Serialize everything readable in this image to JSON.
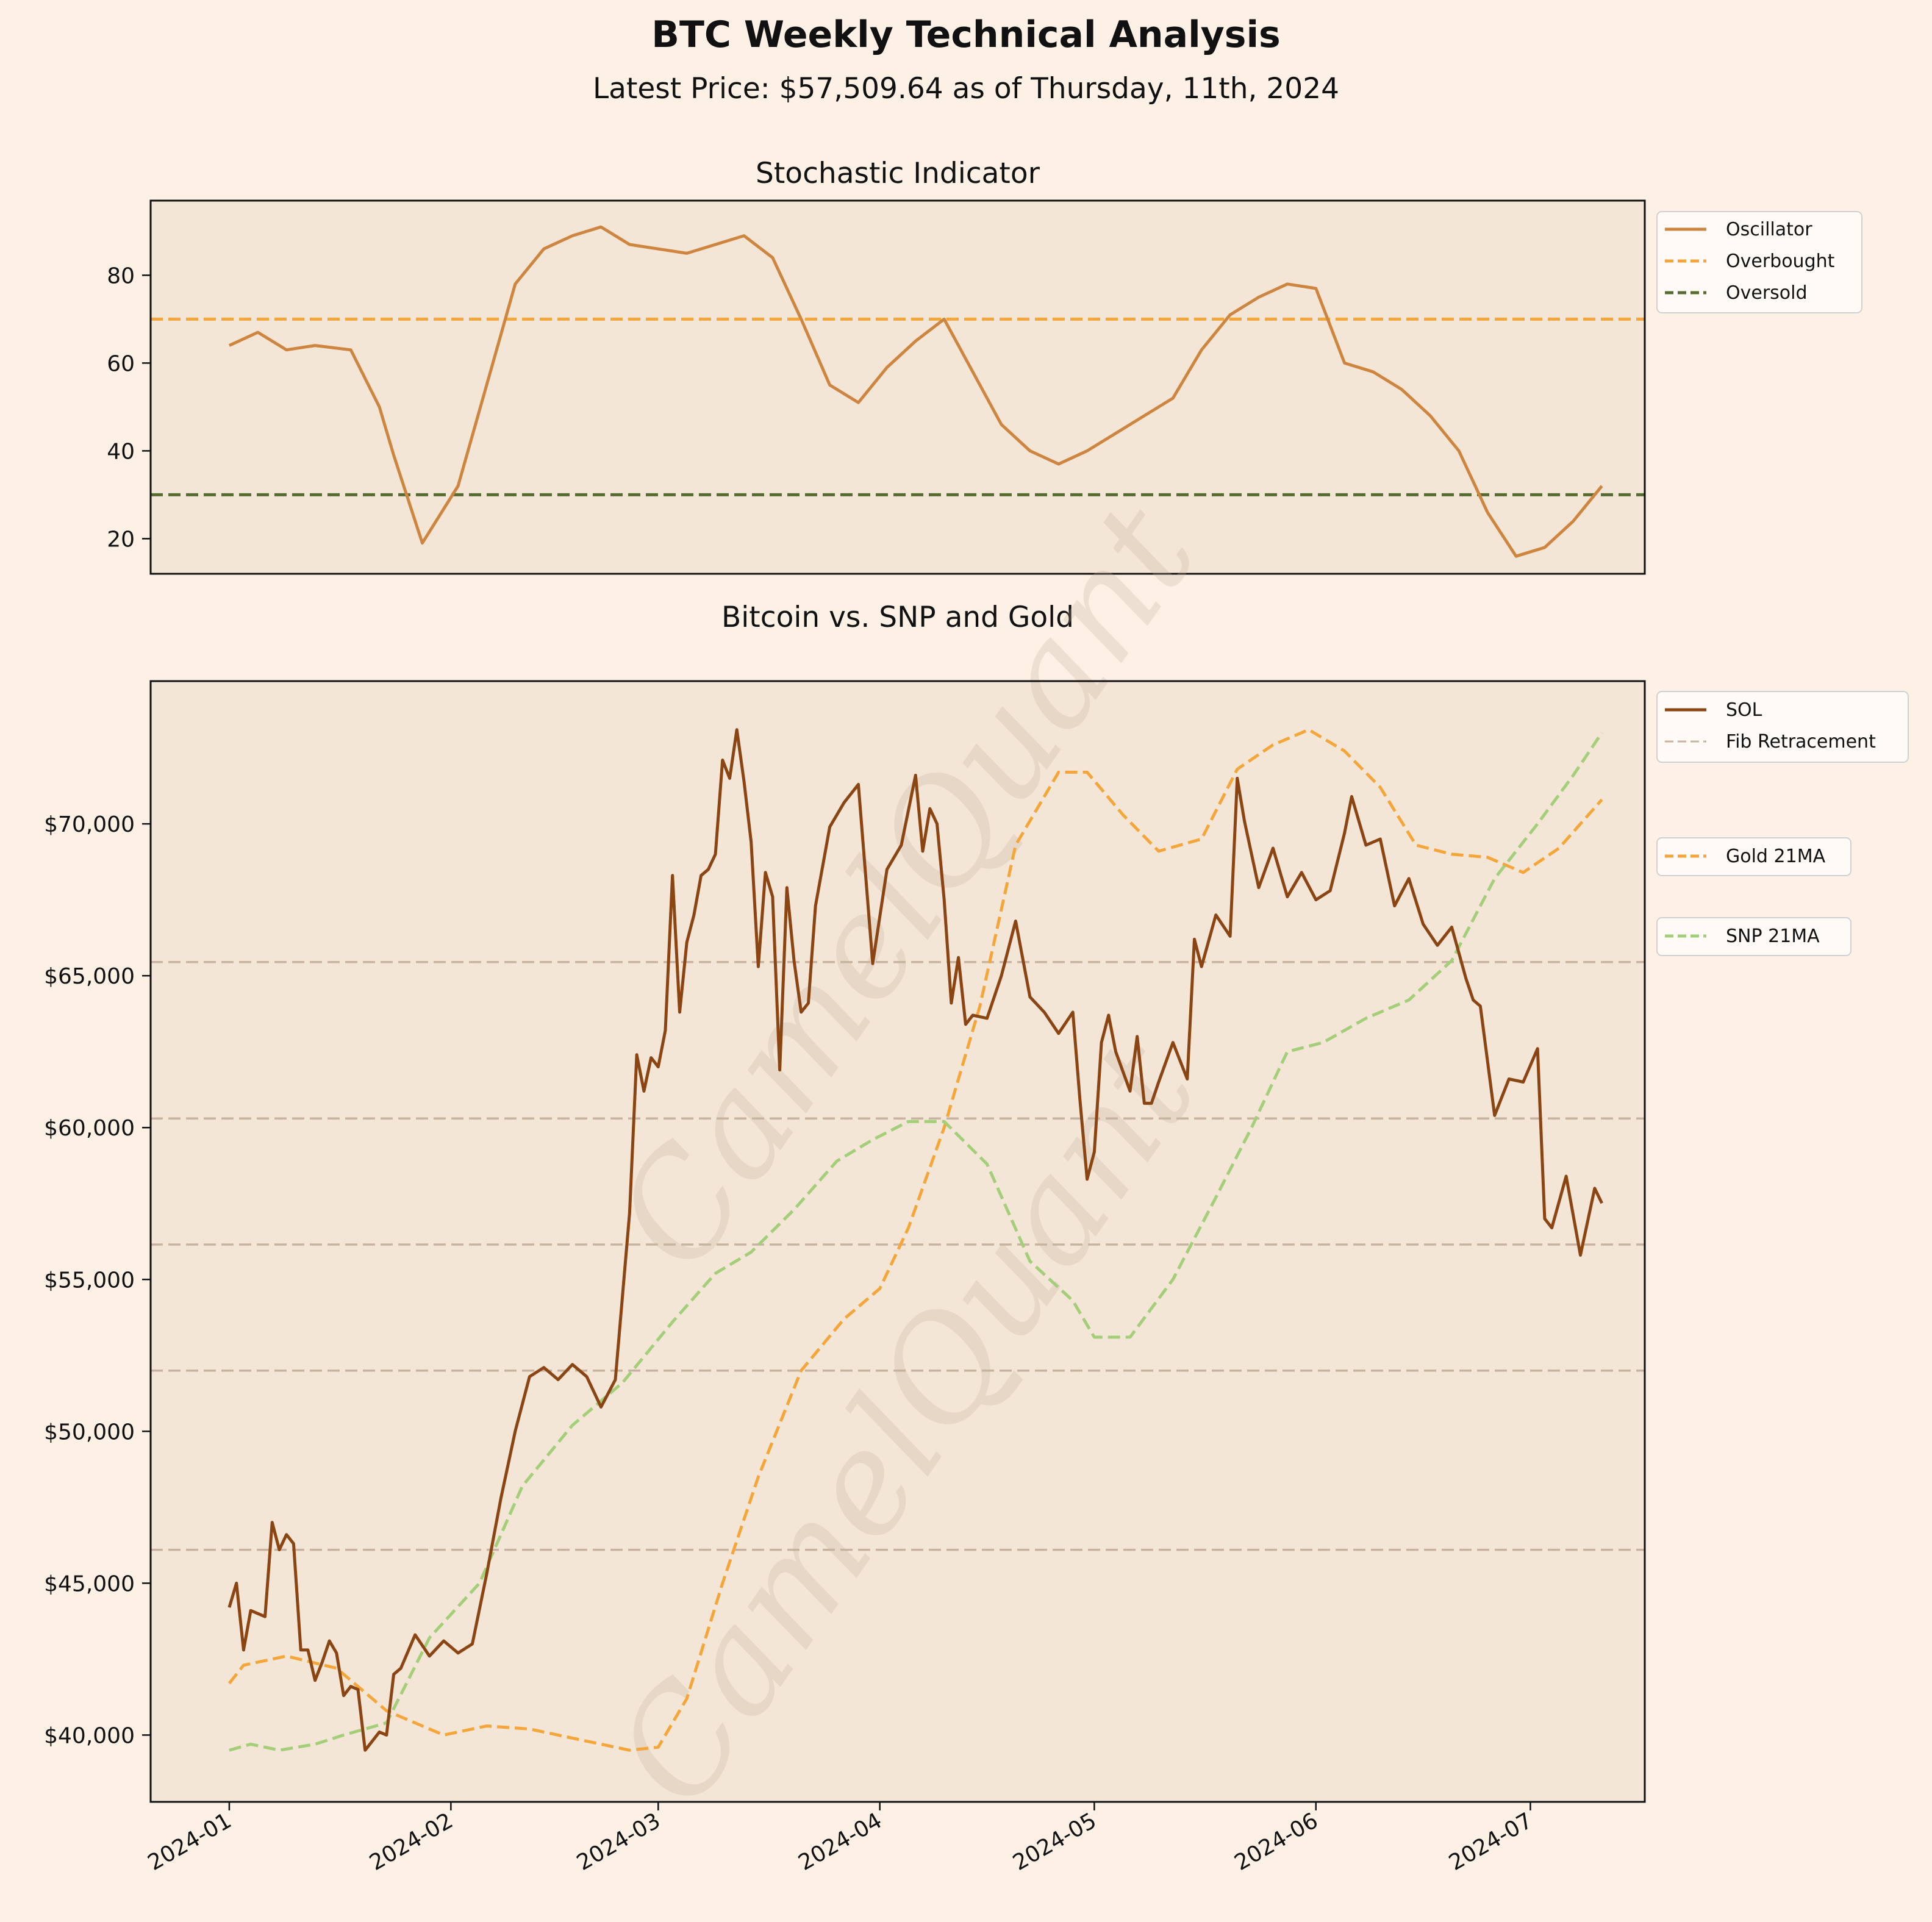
{
  "header": {
    "title": "BTC Weekly Technical Analysis",
    "subtitle": "Latest Price: $57,509.64 as of Thursday, 11th, 2024"
  },
  "watermark": "CamelQuant",
  "colors": {
    "background": "#fdf1e6",
    "plot_background": "#f4e6d6",
    "oscillator": "#cd853f",
    "overbought": "#f4a63a",
    "oversold": "#556b2f",
    "price": "#8b4513",
    "fib": "#c8b2a0",
    "gold_ma": "#f4a63a",
    "snp_ma": "#a3cf79"
  },
  "chart_data": [
    {
      "type": "line",
      "title": "Stochastic Indicator",
      "ylim": [
        12,
        97
      ],
      "yticks": [
        20,
        40,
        60,
        80
      ],
      "grid": false,
      "legend_position": "outside-right-top",
      "hlines": [
        {
          "name": "Overbought",
          "value": 70,
          "style": "dashed"
        },
        {
          "name": "Oversold",
          "value": 30,
          "style": "dashed"
        }
      ],
      "series": [
        {
          "name": "Oscillator",
          "x": [
            "2024-01-01",
            "2024-01-05",
            "2024-01-09",
            "2024-01-13",
            "2024-01-18",
            "2024-01-22",
            "2024-01-24",
            "2024-01-28",
            "2024-02-02",
            "2024-02-06",
            "2024-02-10",
            "2024-02-14",
            "2024-02-18",
            "2024-02-22",
            "2024-02-26",
            "2024-03-01",
            "2024-03-05",
            "2024-03-09",
            "2024-03-13",
            "2024-03-17",
            "2024-03-21",
            "2024-03-25",
            "2024-03-29",
            "2024-04-02",
            "2024-04-06",
            "2024-04-10",
            "2024-04-14",
            "2024-04-18",
            "2024-04-22",
            "2024-04-26",
            "2024-04-30",
            "2024-05-04",
            "2024-05-08",
            "2024-05-12",
            "2024-05-16",
            "2024-05-20",
            "2024-05-24",
            "2024-05-28",
            "2024-06-01",
            "2024-06-05",
            "2024-06-09",
            "2024-06-13",
            "2024-06-17",
            "2024-06-21",
            "2024-06-25",
            "2024-06-29",
            "2024-07-03",
            "2024-07-07",
            "2024-07-11"
          ],
          "values": [
            64,
            67,
            63,
            64,
            63,
            50,
            39,
            19,
            32,
            55,
            78,
            86,
            89,
            91,
            87,
            86,
            85,
            87,
            89,
            84,
            70,
            55,
            51,
            59,
            65,
            70,
            58,
            46,
            40,
            37,
            40,
            44,
            48,
            52,
            63,
            71,
            75,
            78,
            77,
            60,
            58,
            54,
            48,
            40,
            26,
            16,
            18,
            24,
            32
          ]
        }
      ]
    },
    {
      "type": "line",
      "title": "Bitcoin vs. SNP and Gold",
      "ylim": [
        37800,
        74700
      ],
      "yticks": [
        40000,
        45000,
        50000,
        55000,
        60000,
        65000,
        70000
      ],
      "ytick_labels": [
        "$40,000",
        "$45,000",
        "$50,000",
        "$55,000",
        "$60,000",
        "$65,000",
        "$70,000"
      ],
      "xticks": [
        "2024-01",
        "2024-02",
        "2024-03",
        "2024-04",
        "2024-05",
        "2024-06",
        "2024-07"
      ],
      "grid": false,
      "legend_position": "outside-right",
      "hlines": [
        {
          "name": "Fib Retracement",
          "values": [
            46100,
            52000,
            56150,
            60300,
            65450
          ],
          "style": "dashed"
        }
      ],
      "series": [
        {
          "name": "SOL",
          "x": [
            "2024-01-01",
            "2024-01-02",
            "2024-01-03",
            "2024-01-04",
            "2024-01-05",
            "2024-01-06",
            "2024-01-07",
            "2024-01-08",
            "2024-01-09",
            "2024-01-10",
            "2024-01-11",
            "2024-01-12",
            "2024-01-13",
            "2024-01-14",
            "2024-01-15",
            "2024-01-16",
            "2024-01-17",
            "2024-01-18",
            "2024-01-19",
            "2024-01-20",
            "2024-01-21",
            "2024-01-22",
            "2024-01-23",
            "2024-01-24",
            "2024-01-25",
            "2024-01-27",
            "2024-01-29",
            "2024-01-31",
            "2024-02-02",
            "2024-02-04",
            "2024-02-06",
            "2024-02-08",
            "2024-02-10",
            "2024-02-12",
            "2024-02-14",
            "2024-02-16",
            "2024-02-18",
            "2024-02-20",
            "2024-02-22",
            "2024-02-24",
            "2024-02-26",
            "2024-02-27",
            "2024-02-28",
            "2024-02-29",
            "2024-03-01",
            "2024-03-02",
            "2024-03-03",
            "2024-03-04",
            "2024-03-05",
            "2024-03-06",
            "2024-03-07",
            "2024-03-08",
            "2024-03-09",
            "2024-03-10",
            "2024-03-11",
            "2024-03-12",
            "2024-03-13",
            "2024-03-14",
            "2024-03-15",
            "2024-03-16",
            "2024-03-17",
            "2024-03-18",
            "2024-03-19",
            "2024-03-20",
            "2024-03-21",
            "2024-03-22",
            "2024-03-23",
            "2024-03-25",
            "2024-03-27",
            "2024-03-29",
            "2024-03-31",
            "2024-04-02",
            "2024-04-04",
            "2024-04-06",
            "2024-04-07",
            "2024-04-08",
            "2024-04-09",
            "2024-04-10",
            "2024-04-11",
            "2024-04-12",
            "2024-04-13",
            "2024-04-14",
            "2024-04-16",
            "2024-04-18",
            "2024-04-20",
            "2024-04-22",
            "2024-04-24",
            "2024-04-26",
            "2024-04-28",
            "2024-04-29",
            "2024-04-30",
            "2024-05-01",
            "2024-05-02",
            "2024-05-03",
            "2024-05-04",
            "2024-05-06",
            "2024-05-07",
            "2024-05-08",
            "2024-05-09",
            "2024-05-10",
            "2024-05-12",
            "2024-05-14",
            "2024-05-15",
            "2024-05-16",
            "2024-05-18",
            "2024-05-20",
            "2024-05-21",
            "2024-05-22",
            "2024-05-24",
            "2024-05-26",
            "2024-05-28",
            "2024-05-30",
            "2024-06-01",
            "2024-06-03",
            "2024-06-05",
            "2024-06-06",
            "2024-06-08",
            "2024-06-10",
            "2024-06-12",
            "2024-06-14",
            "2024-06-16",
            "2024-06-18",
            "2024-06-20",
            "2024-06-22",
            "2024-06-23",
            "2024-06-24",
            "2024-06-26",
            "2024-06-28",
            "2024-06-30",
            "2024-07-02",
            "2024-07-03",
            "2024-07-04",
            "2024-07-06",
            "2024-07-08",
            "2024-07-10",
            "2024-07-11"
          ],
          "values": [
            44200,
            45000,
            42800,
            44100,
            44000,
            43900,
            47000,
            46100,
            46600,
            46300,
            42800,
            42800,
            41800,
            42400,
            43100,
            42700,
            41300,
            41600,
            41500,
            39500,
            39800,
            40100,
            40000,
            42000,
            42200,
            43300,
            42600,
            43100,
            42700,
            43000,
            45300,
            47800,
            50000,
            51800,
            52100,
            51700,
            52200,
            51800,
            50800,
            51700,
            57200,
            62400,
            61200,
            62300,
            62000,
            63200,
            68300,
            63800,
            66100,
            67000,
            68300,
            68500,
            69000,
            72100,
            71500,
            73100,
            71400,
            69400,
            65300,
            68400,
            67600,
            61900,
            67900,
            65500,
            63800,
            64100,
            67300,
            69900,
            70700,
            71300,
            65400,
            68500,
            69300,
            71600,
            69100,
            70500,
            70000,
            67500,
            64100,
            65600,
            63400,
            63700,
            63600,
            65000,
            66800,
            64300,
            63800,
            63100,
            63800,
            60900,
            58300,
            59200,
            62800,
            63700,
            62500,
            61200,
            63000,
            60800,
            60800,
            61500,
            62800,
            61600,
            66200,
            65300,
            67000,
            66300,
            71500,
            70100,
            67900,
            69200,
            67600,
            68400,
            67500,
            67800,
            69700,
            70900,
            69300,
            69500,
            67300,
            68200,
            66700,
            66000,
            66600,
            64900,
            64200,
            64000,
            60400,
            61600,
            61500,
            62600,
            57000,
            56700,
            58400,
            55800,
            58000,
            57510
          ]
        },
        {
          "name": "Gold 21MA",
          "x": [
            "2024-01-01",
            "2024-01-03",
            "2024-01-09",
            "2024-01-16",
            "2024-01-23",
            "2024-01-31",
            "2024-02-06",
            "2024-02-12",
            "2024-02-20",
            "2024-02-26",
            "2024-03-01",
            "2024-03-05",
            "2024-03-10",
            "2024-03-15",
            "2024-03-21",
            "2024-03-27",
            "2024-04-01",
            "2024-04-05",
            "2024-04-10",
            "2024-04-15",
            "2024-04-20",
            "2024-04-26",
            "2024-04-30",
            "2024-05-05",
            "2024-05-10",
            "2024-05-16",
            "2024-05-21",
            "2024-05-26",
            "2024-05-31",
            "2024-06-05",
            "2024-06-10",
            "2024-06-15",
            "2024-06-20",
            "2024-06-25",
            "2024-06-30",
            "2024-07-05",
            "2024-07-11"
          ],
          "values": [
            41700,
            42300,
            42600,
            42200,
            40800,
            40000,
            40300,
            40200,
            39800,
            39500,
            39600,
            41200,
            45000,
            48500,
            52000,
            53700,
            54700,
            56700,
            60000,
            64000,
            69300,
            71700,
            71700,
            70300,
            69100,
            69500,
            71800,
            72600,
            73100,
            72400,
            71200,
            69300,
            69000,
            68900,
            68400,
            69200,
            70800
          ]
        },
        {
          "name": "SNP 21MA",
          "x": [
            "2024-01-01",
            "2024-01-04",
            "2024-01-08",
            "2024-01-13",
            "2024-01-17",
            "2024-01-23",
            "2024-01-29",
            "2024-02-05",
            "2024-02-11",
            "2024-02-18",
            "2024-02-25",
            "2024-03-03",
            "2024-03-09",
            "2024-03-14",
            "2024-03-20",
            "2024-03-26",
            "2024-03-31",
            "2024-04-05",
            "2024-04-10",
            "2024-04-16",
            "2024-04-22",
            "2024-04-28",
            "2024-05-01",
            "2024-05-06",
            "2024-05-12",
            "2024-05-18",
            "2024-05-23",
            "2024-05-28",
            "2024-06-02",
            "2024-06-08",
            "2024-06-14",
            "2024-06-20",
            "2024-06-26",
            "2024-07-02",
            "2024-07-07",
            "2024-07-11"
          ],
          "values": [
            39500,
            39700,
            39500,
            39700,
            40000,
            40400,
            43200,
            45000,
            48200,
            50200,
            51600,
            53600,
            55200,
            55900,
            57300,
            58900,
            59600,
            60200,
            60200,
            58800,
            55600,
            54300,
            53100,
            53100,
            55000,
            57700,
            60000,
            62500,
            62800,
            63600,
            64200,
            65500,
            68200,
            70000,
            71600,
            73000
          ]
        }
      ]
    }
  ]
}
